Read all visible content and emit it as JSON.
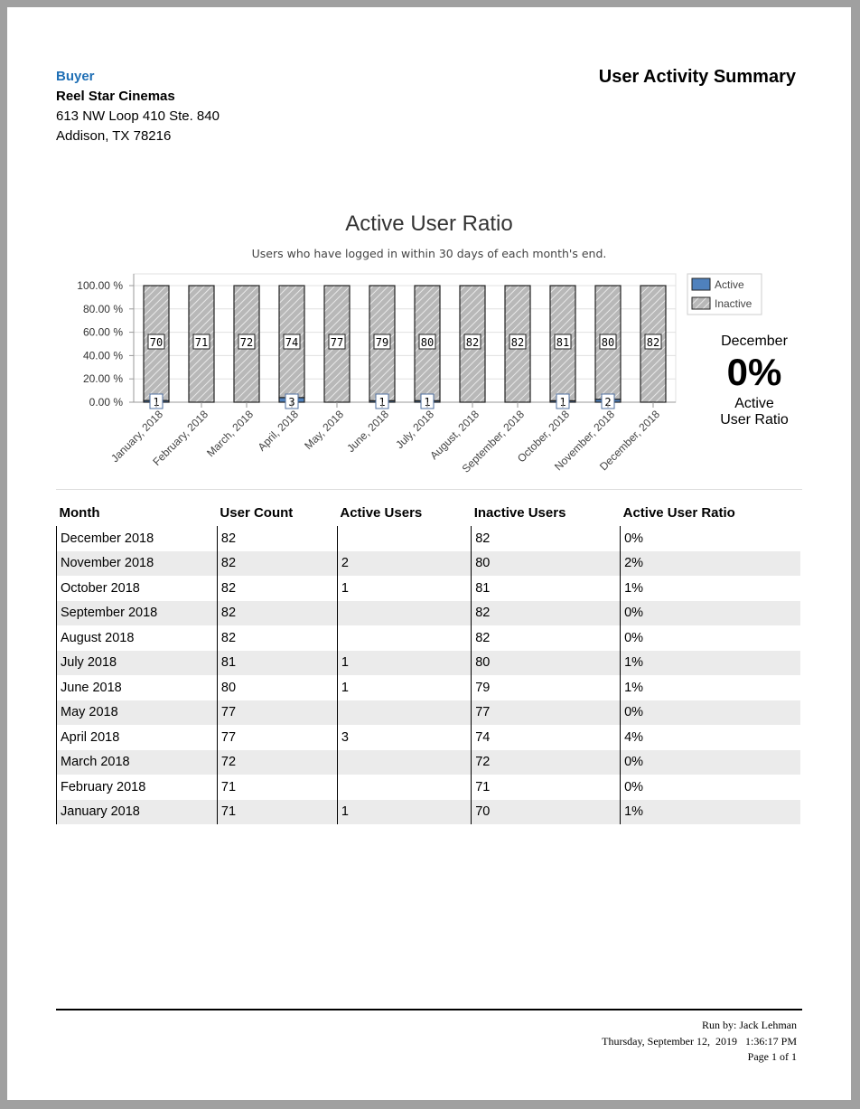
{
  "header": {
    "buyer_label": "Buyer",
    "buyer_name": "Reel Star Cinemas",
    "address_line1": "613 NW Loop 410 Ste. 840",
    "address_line2": "Addison, TX 78216",
    "report_title": "User Activity Summary"
  },
  "kpi": {
    "month": "December",
    "value": "0%",
    "label": "Active User Ratio"
  },
  "chart_data": {
    "type": "bar",
    "stacked": "percent",
    "title": "Active User Ratio",
    "subtitle": "Users who have logged in within 30 days of each month's end.",
    "categories": [
      "January, 2018",
      "February, 2018",
      "March, 2018",
      "April, 2018",
      "May, 2018",
      "June, 2018",
      "July, 2018",
      "August, 2018",
      "September, 2018",
      "October, 2018",
      "November, 2018",
      "December, 2018"
    ],
    "series": [
      {
        "name": "Active",
        "color": "#4f81bd",
        "values": [
          1,
          0,
          0,
          3,
          0,
          1,
          1,
          0,
          0,
          1,
          2,
          0
        ]
      },
      {
        "name": "Inactive",
        "color": "#c0c0c0",
        "pattern": "hatched",
        "values": [
          70,
          71,
          72,
          74,
          77,
          79,
          80,
          82,
          82,
          81,
          80,
          82
        ]
      }
    ],
    "yticks": [
      "0.00 %",
      "20.00 %",
      "40.00 %",
      "60.00 %",
      "80.00 %",
      "100.00 %"
    ],
    "ylim": [
      0,
      100
    ],
    "grid": true,
    "legend": "top-right"
  },
  "table": {
    "columns": [
      "Month",
      "User Count",
      "Active Users",
      "Inactive Users",
      "Active User Ratio"
    ],
    "rows": [
      [
        "December 2018",
        "82",
        "",
        "82",
        "0%"
      ],
      [
        "November 2018",
        "82",
        "2",
        "80",
        "2%"
      ],
      [
        "October 2018",
        "82",
        "1",
        "81",
        "1%"
      ],
      [
        "September 2018",
        "82",
        "",
        "82",
        "0%"
      ],
      [
        "August 2018",
        "82",
        "",
        "82",
        "0%"
      ],
      [
        "July 2018",
        "81",
        "1",
        "80",
        "1%"
      ],
      [
        "June 2018",
        "80",
        "1",
        "79",
        "1%"
      ],
      [
        "May 2018",
        "77",
        "",
        "77",
        "0%"
      ],
      [
        "April 2018",
        "77",
        "3",
        "74",
        "4%"
      ],
      [
        "March 2018",
        "72",
        "",
        "72",
        "0%"
      ],
      [
        "February 2018",
        "71",
        "",
        "71",
        "0%"
      ],
      [
        "January 2018",
        "71",
        "1",
        "70",
        "1%"
      ]
    ]
  },
  "footer": {
    "run_by": "Run by: Jack Lehman",
    "datetime": "Thursday, September 12,  2019   1:36:17 PM",
    "page": "Page 1 of 1"
  }
}
